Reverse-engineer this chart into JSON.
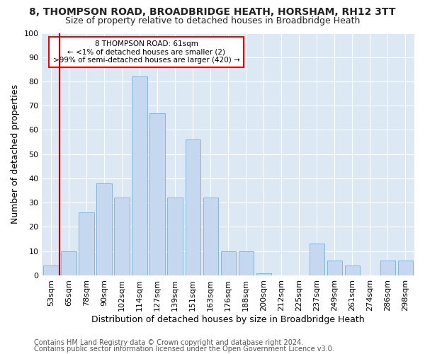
{
  "title1": "8, THOMPSON ROAD, BROADBRIDGE HEATH, HORSHAM, RH12 3TT",
  "title2": "Size of property relative to detached houses in Broadbridge Heath",
  "xlabel": "Distribution of detached houses by size in Broadbridge Heath",
  "ylabel": "Number of detached properties",
  "footnote1": "Contains HM Land Registry data © Crown copyright and database right 2024.",
  "footnote2": "Contains public sector information licensed under the Open Government Licence v3.0.",
  "annotation_line1": "8 THOMPSON ROAD: 61sqm",
  "annotation_line2": "← <1% of detached houses are smaller (2)",
  "annotation_line3": ">99% of semi-detached houses are larger (420) →",
  "bar_labels": [
    "53sqm",
    "65sqm",
    "78sqm",
    "90sqm",
    "102sqm",
    "114sqm",
    "127sqm",
    "139sqm",
    "151sqm",
    "163sqm",
    "176sqm",
    "188sqm",
    "200sqm",
    "212sqm",
    "225sqm",
    "237sqm",
    "249sqm",
    "261sqm",
    "274sqm",
    "286sqm",
    "298sqm"
  ],
  "bar_values": [
    4,
    10,
    26,
    38,
    32,
    82,
    67,
    32,
    56,
    32,
    10,
    10,
    1,
    0,
    0,
    13,
    6,
    4,
    0,
    6,
    6
  ],
  "bar_color": "#c5d8f0",
  "bar_edge_color": "#7aadd4",
  "highlight_color": "#cc0000",
  "ylim": [
    0,
    100
  ],
  "yticks": [
    0,
    10,
    20,
    30,
    40,
    50,
    60,
    70,
    80,
    90,
    100
  ],
  "bg_color": "#ffffff",
  "plot_bg_color": "#dce9f5",
  "grid_color": "#ffffff",
  "title_fontsize": 10,
  "subtitle_fontsize": 9,
  "axis_label_fontsize": 9,
  "tick_fontsize": 8,
  "footnote_fontsize": 7
}
